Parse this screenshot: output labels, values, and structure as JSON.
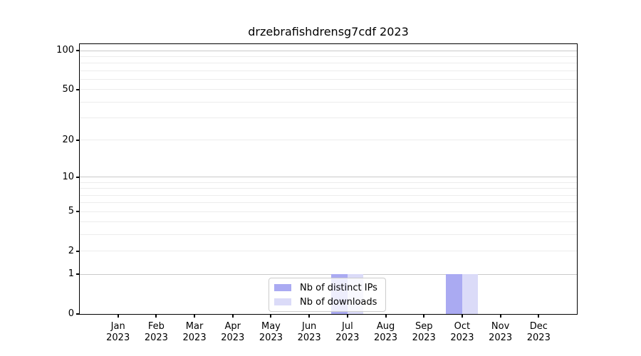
{
  "chart_data": {
    "type": "bar",
    "title": "drzebrafishdrensg7cdf 2023",
    "year": "2023",
    "months": [
      "Jan",
      "Feb",
      "Mar",
      "Apr",
      "May",
      "Jun",
      "Jul",
      "Aug",
      "Sep",
      "Oct",
      "Nov",
      "Dec"
    ],
    "series": [
      {
        "name": "Nb of distinct IPs",
        "color": "#aaaaf2",
        "values": [
          0,
          0,
          0,
          0,
          0,
          0,
          1,
          0,
          0,
          1,
          0,
          0
        ]
      },
      {
        "name": "Nb of downloads",
        "color": "#dbdbf8",
        "values": [
          0,
          0,
          0,
          0,
          0,
          0,
          1,
          0,
          0,
          1,
          0,
          0
        ]
      }
    ],
    "yscale": "log1p",
    "ymax": 112,
    "yticks": [
      {
        "label": "0",
        "value": 0
      },
      {
        "label": "1",
        "value": 1
      },
      {
        "label": "2",
        "value": 2
      },
      {
        "label": "5",
        "value": 5
      },
      {
        "label": "10",
        "value": 10
      },
      {
        "label": "20",
        "value": 20
      },
      {
        "label": "50",
        "value": 50
      },
      {
        "label": "100",
        "value": 100
      }
    ],
    "gridlines": {
      "major": [
        1,
        10,
        100
      ],
      "minor": [
        2,
        3,
        4,
        5,
        6,
        7,
        8,
        9,
        20,
        30,
        40,
        50,
        60,
        70,
        80,
        90
      ]
    },
    "grid": true,
    "legend_position": "lower center",
    "colors": {
      "grid_major": "#c9c9c9",
      "grid_minor": "#ececec",
      "spine": "#000000",
      "legend_border": "#cccccc"
    }
  }
}
